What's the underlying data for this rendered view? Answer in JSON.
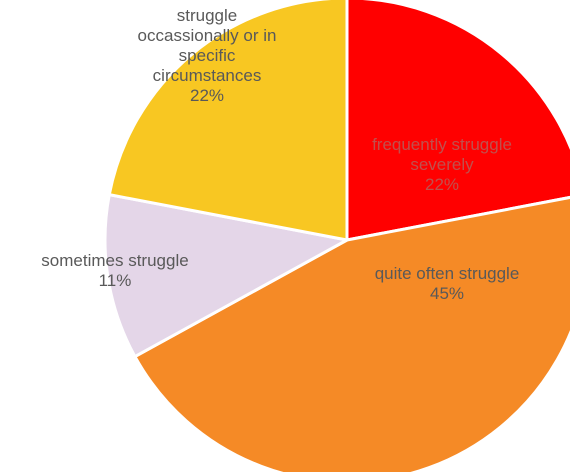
{
  "chart_data": {
    "type": "pie",
    "slices": [
      {
        "label_lines": [
          "frequently struggle",
          "severely"
        ],
        "value": 22,
        "pct_text": "22%",
        "color": "#ff0000",
        "text_color": "#c0504d"
      },
      {
        "label_lines": [
          "quite often struggle"
        ],
        "value": 45,
        "pct_text": "45%",
        "color": "#f58a26",
        "text_color": "#595959"
      },
      {
        "label_lines": [
          "sometimes struggle"
        ],
        "value": 11,
        "pct_text": "11%",
        "color": "#e4d6e8",
        "text_color": "#595959"
      },
      {
        "label_lines": [
          "struggle",
          "occassionally or in",
          "specific",
          "circumstances"
        ],
        "value": 22,
        "pct_text": "22%",
        "color": "#f8c722",
        "text_color": "#595959"
      }
    ],
    "start_angle_deg": 0,
    "direction": "clockwise",
    "legend": "none"
  }
}
